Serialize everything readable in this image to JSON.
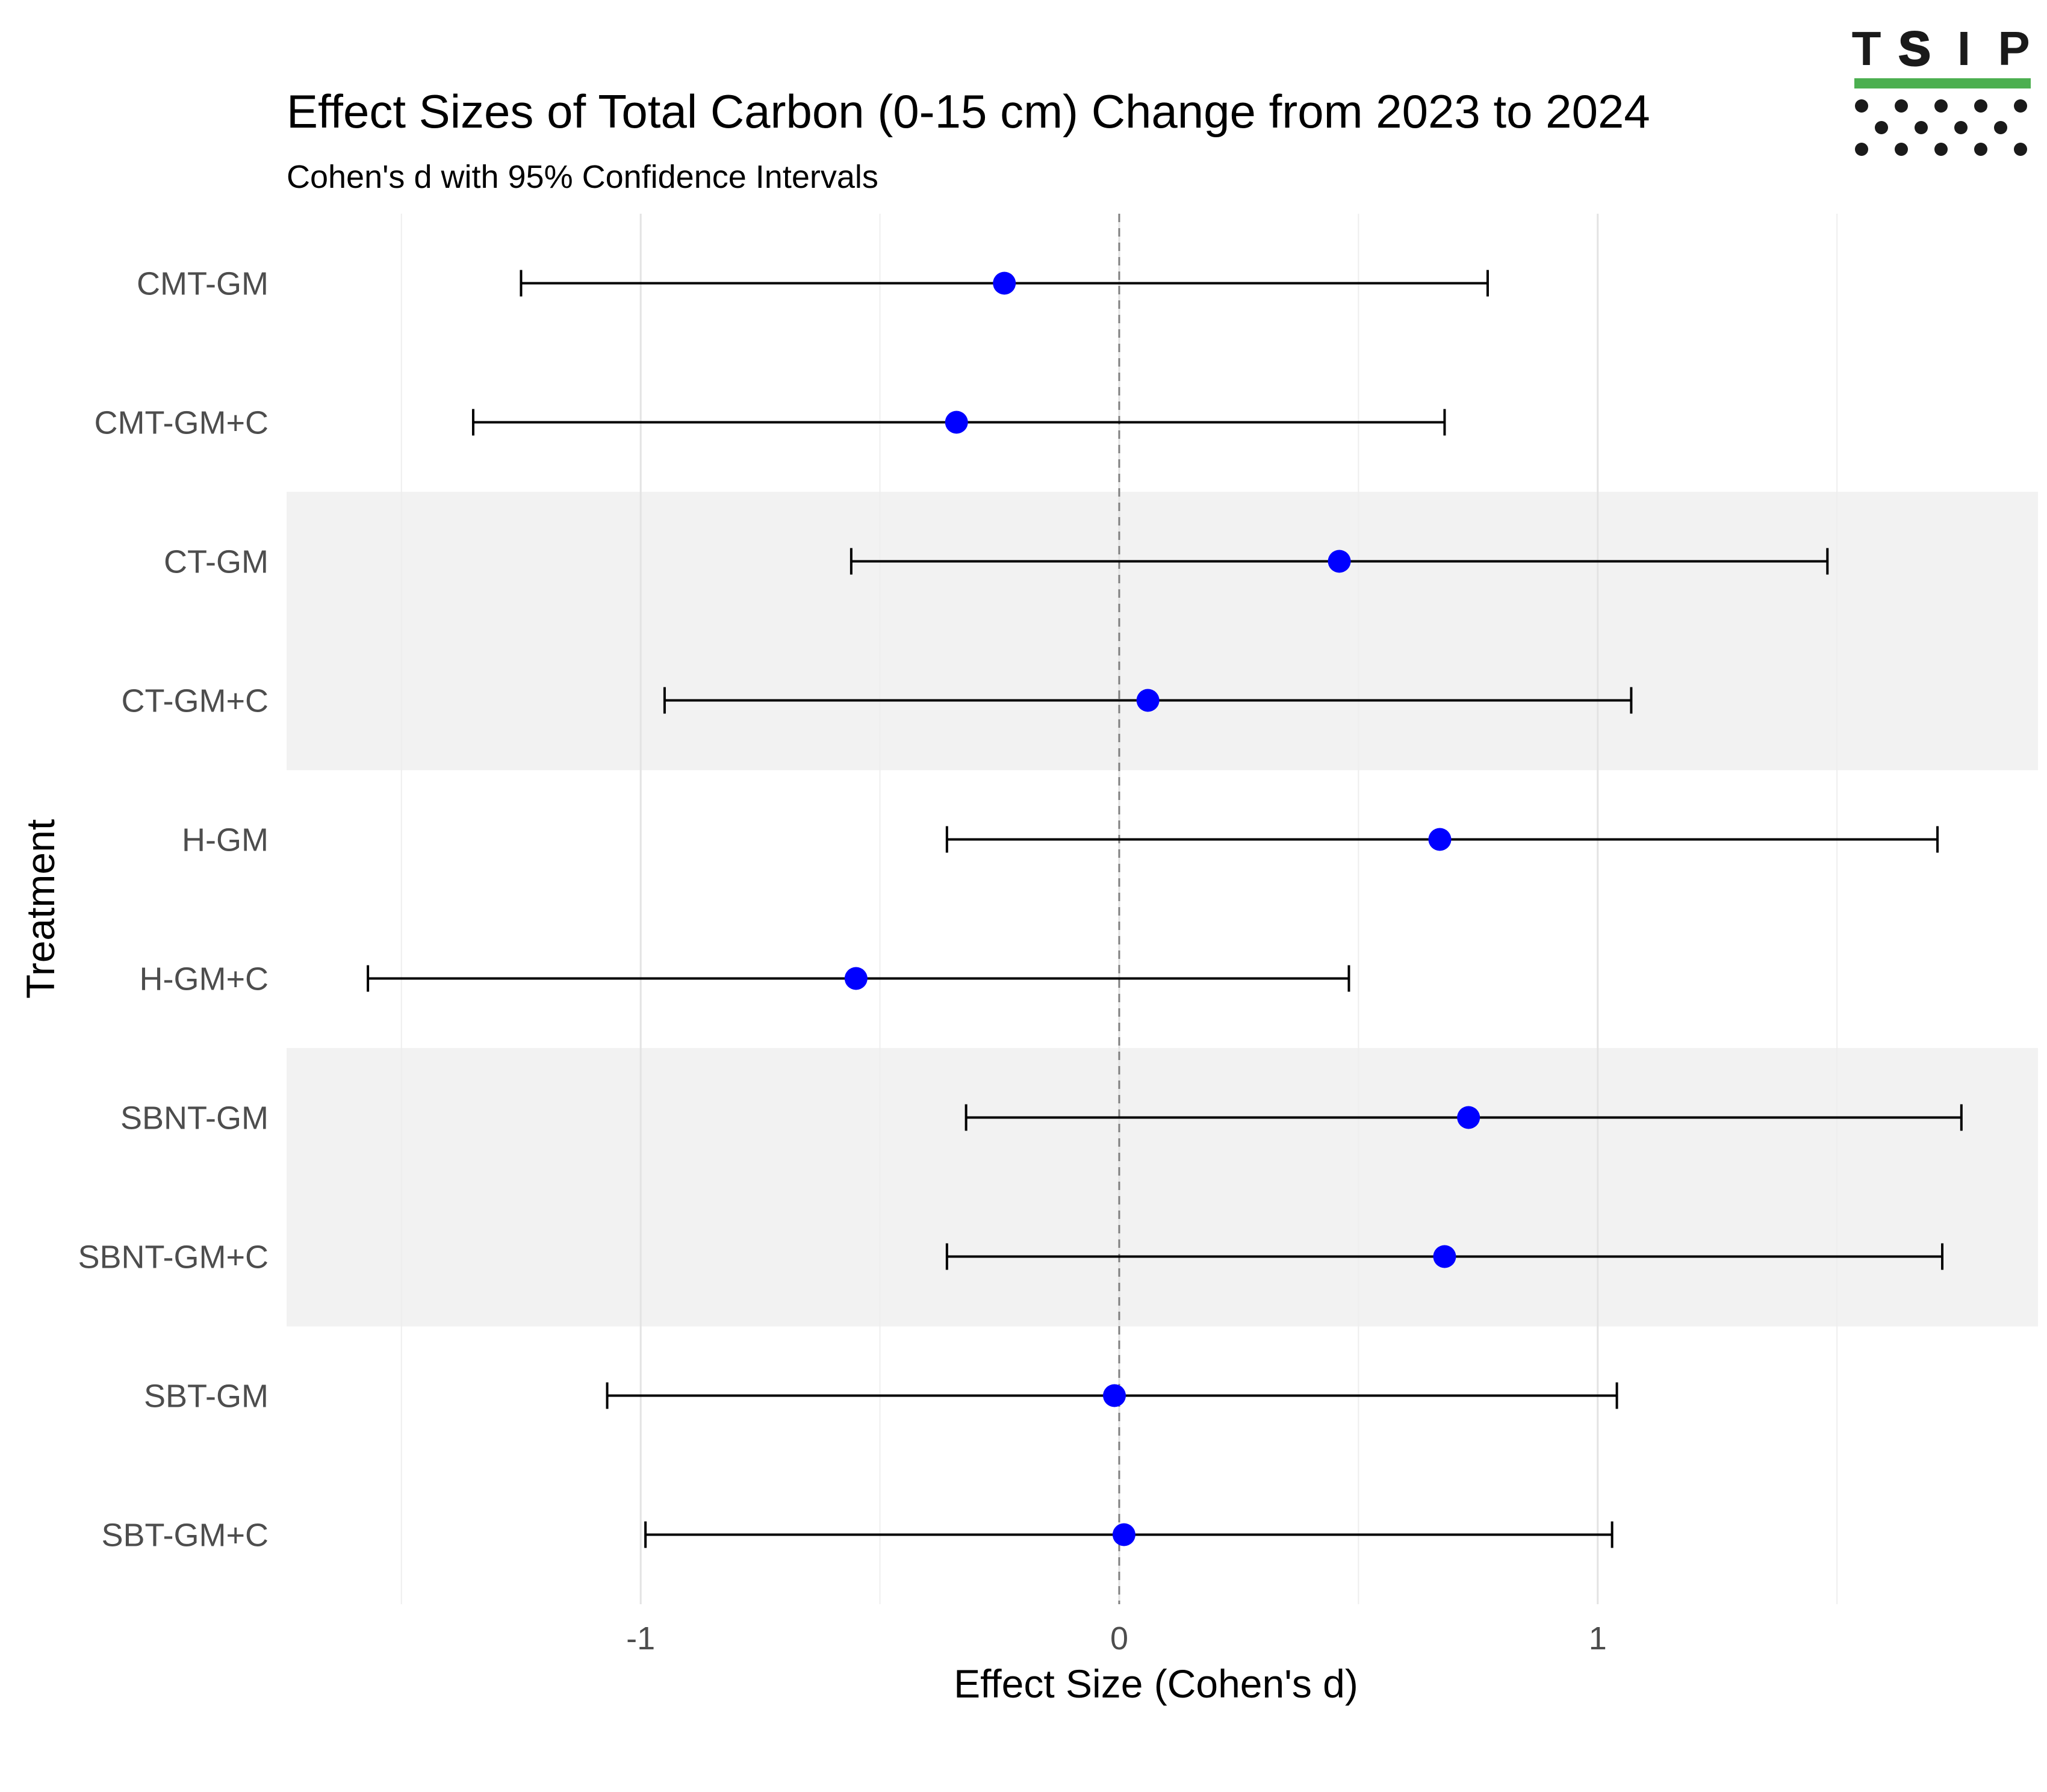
{
  "chart_data": {
    "type": "forest",
    "title": "Effect Sizes of Total Carbon (0-15 cm) Change from 2023 to 2024",
    "subtitle": "Cohen's d with 95% Confidence Intervals",
    "xlabel": "Effect Size (Cohen's d)",
    "ylabel": "Treatment",
    "xlim": [
      -1.74,
      1.92
    ],
    "x_ticks": [
      -1,
      0,
      1
    ],
    "x_tick_labels": [
      "-1",
      "0",
      "1"
    ],
    "reference_line": 0,
    "grid": true,
    "point_color": "#0000ff",
    "band_color": "#f2f2f2",
    "shaded_rows": [
      "CT-GM",
      "CT-GM+C",
      "SBNT-GM",
      "SBNT-GM+C"
    ],
    "series": [
      {
        "category": "CMT-GM",
        "estimate": -0.24,
        "lower": -1.25,
        "upper": 0.77
      },
      {
        "category": "CMT-GM+C",
        "estimate": -0.34,
        "lower": -1.35,
        "upper": 0.68
      },
      {
        "category": "CT-GM",
        "estimate": 0.46,
        "lower": -0.56,
        "upper": 1.48
      },
      {
        "category": "CT-GM+C",
        "estimate": 0.06,
        "lower": -0.95,
        "upper": 1.07
      },
      {
        "category": "H-GM",
        "estimate": 0.67,
        "lower": -0.36,
        "upper": 1.71
      },
      {
        "category": "H-GM+C",
        "estimate": -0.55,
        "lower": -1.57,
        "upper": 0.48
      },
      {
        "category": "SBNT-GM",
        "estimate": 0.73,
        "lower": -0.32,
        "upper": 1.76
      },
      {
        "category": "SBNT-GM+C",
        "estimate": 0.68,
        "lower": -0.36,
        "upper": 1.72
      },
      {
        "category": "SBT-GM",
        "estimate": -0.01,
        "lower": -1.07,
        "upper": 1.04
      },
      {
        "category": "SBT-GM+C",
        "estimate": 0.01,
        "lower": -0.99,
        "upper": 1.03
      }
    ]
  },
  "logo": {
    "letters": [
      "T",
      "S",
      "I",
      "P"
    ],
    "bar_color": "#4caf50",
    "dot_color": "#1a1a1a"
  }
}
